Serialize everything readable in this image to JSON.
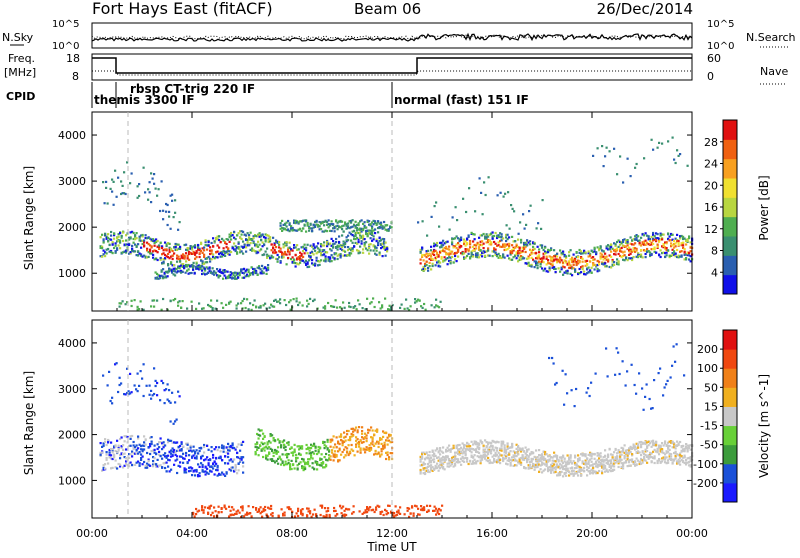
{
  "header": {
    "station": "Fort Hays East (fitACF)",
    "beam": "Beam 06",
    "date": "26/Dec/2014"
  },
  "noise_panel": {
    "left_label": "N.Sky",
    "right_label": "N.Search",
    "left_ticks": [
      "10^5",
      "10^0"
    ],
    "right_ticks": [
      "10^5",
      "10^0"
    ]
  },
  "freq_panel": {
    "left_label_1": "Freq.",
    "left_label_2": "[MHz]",
    "right_label": "Nave",
    "left_ticks": [
      "18",
      "8"
    ],
    "right_ticks": [
      "60",
      "0"
    ]
  },
  "cpid": {
    "label": "CPID",
    "segments": [
      {
        "name": "themis",
        "text": "themis 3300 IF"
      },
      {
        "name": "rbsp",
        "text": "rbsp CT-trig 220 IF"
      },
      {
        "name": "normal",
        "text": "normal (fast) 151 IF"
      }
    ]
  },
  "chart_data": {
    "type": "heatmap",
    "xlabel": "Time UT",
    "x_ticks": [
      "00:00",
      "04:00",
      "08:00",
      "12:00",
      "16:00",
      "20:00",
      "00:00"
    ],
    "xlim_hours": [
      0,
      24
    ],
    "ylabel": "Slant Range [km]",
    "y_ticks": [
      1000,
      2000,
      3000,
      4000
    ],
    "ylim_km": [
      180,
      4500
    ],
    "panels": [
      {
        "name": "power",
        "colorbar_label": "Power [dB]",
        "colorbar_ticks": [
          "28",
          "24",
          "20",
          "16",
          "12",
          "8",
          "4"
        ],
        "colors": [
          "#1010e8",
          "#2a5fb0",
          "#3a8f70",
          "#4fae50",
          "#b8d640",
          "#f0e030",
          "#f8a020",
          "#f06010",
          "#e01010"
        ]
      },
      {
        "name": "velocity",
        "colorbar_label": "Velocity [m s^-1]",
        "colorbar_ticks": [
          "200",
          "100",
          "50",
          "15",
          "-15",
          "-50",
          "-100",
          "-200"
        ],
        "colors": [
          "#1a1aff",
          "#1a50d8",
          "#3c9c3c",
          "#68d038",
          "#c8c8c8",
          "#f0b020",
          "#f08018",
          "#f04810",
          "#e01010"
        ]
      }
    ]
  }
}
